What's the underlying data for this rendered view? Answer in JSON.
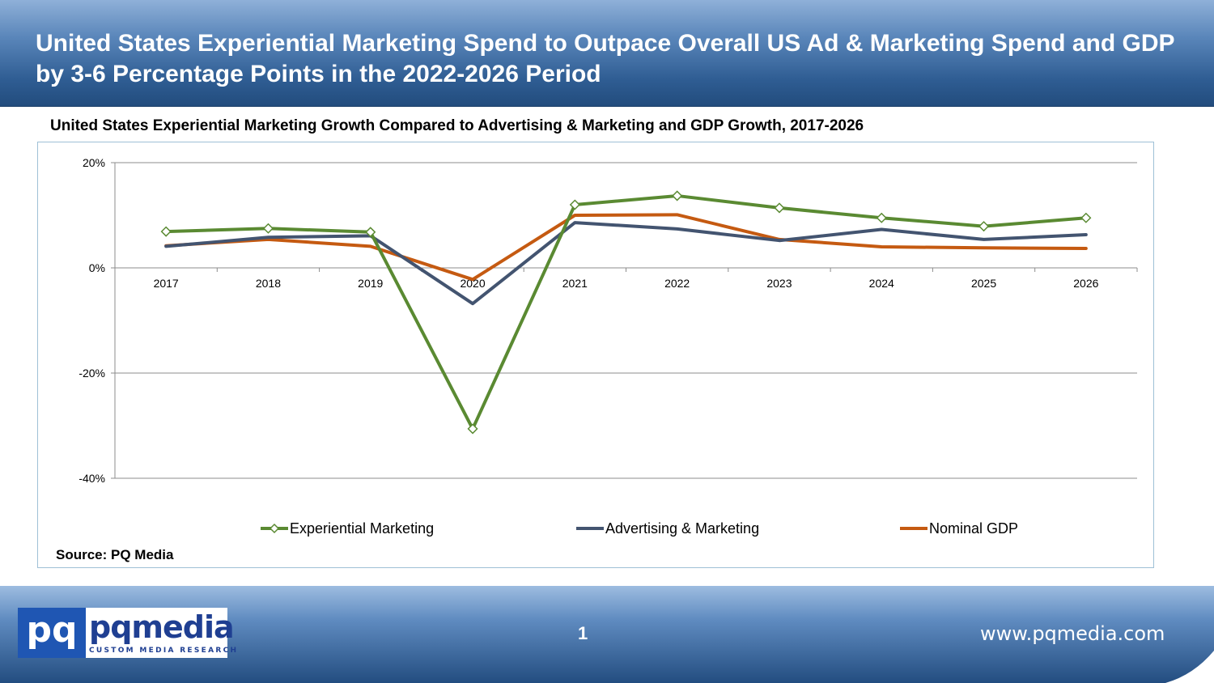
{
  "header": {
    "title": "United States Experiential Marketing Spend to Outpace Overall US Ad & Marketing Spend and GDP by 3-6 Percentage Points in the 2022-2026 Period"
  },
  "source": "Source: PQ Media",
  "footer": {
    "logo_mark": "pq",
    "logo_name": "pqmedia",
    "logo_tagline": "CUSTOM MEDIA RESEARCH",
    "page_number": "1",
    "website": "www.pqmedia.com"
  },
  "chart_data": {
    "type": "line",
    "title": "United States Experiential Marketing Growth Compared to Advertising & Marketing and GDP Growth, 2017-2026",
    "xlabel": "",
    "ylabel": "",
    "categories": [
      "2017",
      "2018",
      "2019",
      "2020",
      "2021",
      "2022",
      "2023",
      "2024",
      "2025",
      "2026"
    ],
    "ylim": [
      -40,
      20
    ],
    "yticks": [
      20,
      0,
      -20,
      -40
    ],
    "ytick_labels": [
      "20%",
      "0%",
      "-20%",
      "-40%"
    ],
    "grid": true,
    "legend_position": "bottom",
    "series": [
      {
        "name": "Experiential Marketing",
        "color": "#5a8a32",
        "marker": "diamond",
        "values": [
          6.9,
          7.5,
          6.8,
          -30.6,
          12.0,
          13.7,
          11.4,
          9.5,
          7.9,
          9.5
        ]
      },
      {
        "name": "Advertising & Marketing",
        "color": "#435470",
        "marker": "none",
        "values": [
          4.1,
          5.8,
          6.1,
          -6.8,
          8.6,
          7.4,
          5.2,
          7.3,
          5.4,
          6.3
        ]
      },
      {
        "name": "Nominal GDP",
        "color": "#c55a11",
        "marker": "none",
        "values": [
          4.2,
          5.4,
          4.1,
          -2.2,
          10.0,
          10.1,
          5.4,
          4.0,
          3.8,
          3.7
        ]
      }
    ]
  },
  "colors": {
    "header_dark": "#224c7d",
    "header_light": "#8fb0d8",
    "logo_blue": "#1f56b3"
  }
}
